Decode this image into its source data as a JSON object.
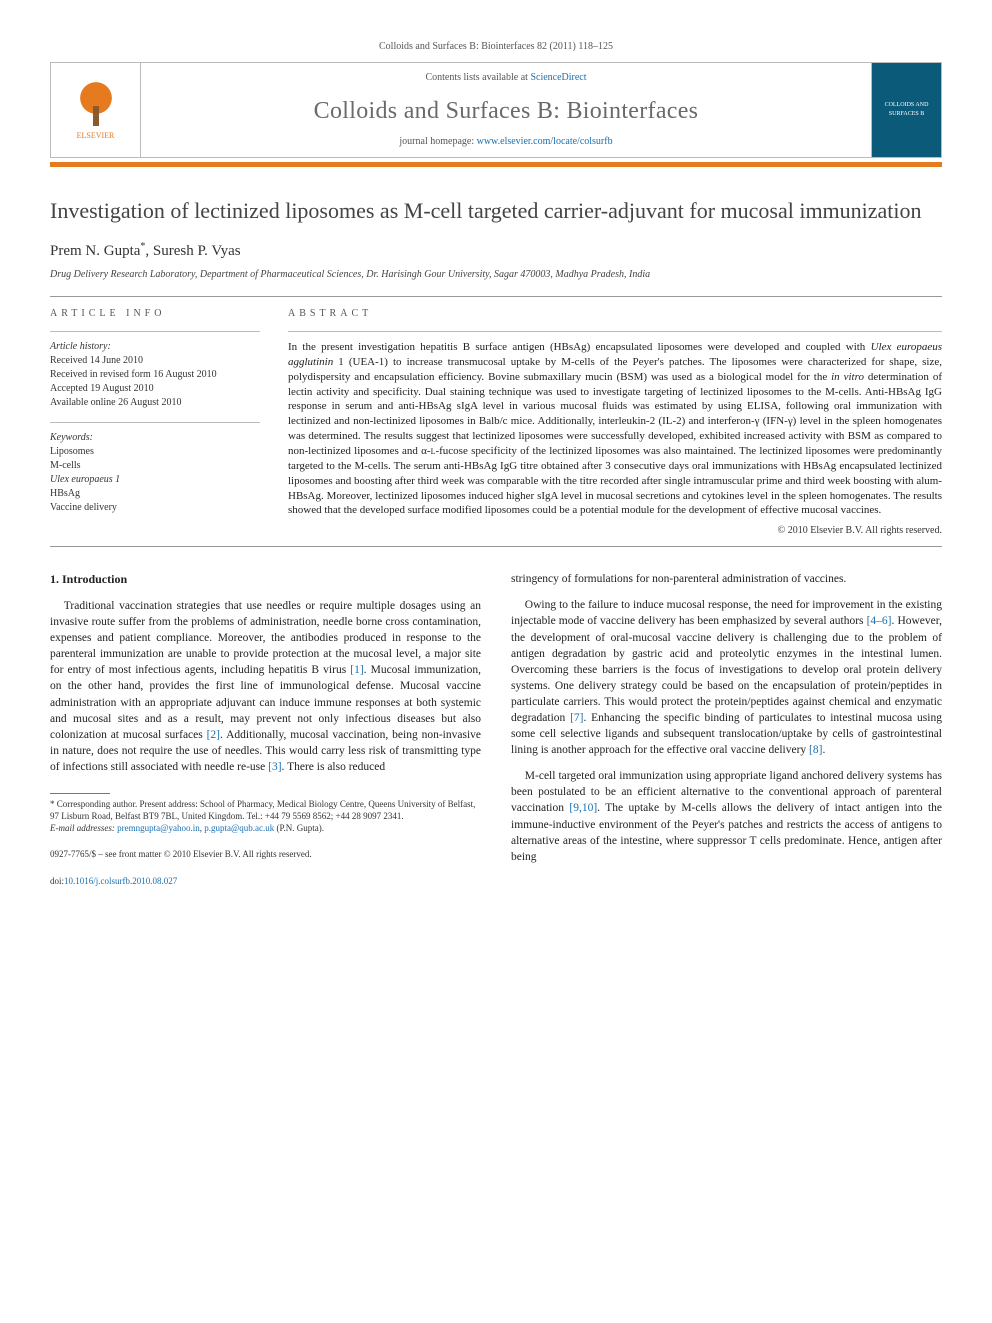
{
  "running_head": "Colloids and Surfaces B: Biointerfaces 82 (2011) 118–125",
  "header": {
    "contents_prefix": "Contents lists available at ",
    "contents_link": "ScienceDirect",
    "journal_title": "Colloids and Surfaces B: Biointerfaces",
    "homepage_prefix": "journal homepage: ",
    "homepage_link": "www.elsevier.com/locate/colsurfb",
    "publisher_label": "ELSEVIER",
    "cover_text": "COLLOIDS AND SURFACES B"
  },
  "article": {
    "title": "Investigation of lectinized liposomes as M-cell targeted carrier-adjuvant for mucosal immunization",
    "authors_html": "Prem N. Gupta*, Suresh P. Vyas",
    "author1": "Prem N. Gupta",
    "author1_mark": "*",
    "author_sep": ", ",
    "author2": "Suresh P. Vyas",
    "affiliation": "Drug Delivery Research Laboratory, Department of Pharmaceutical Sciences, Dr. Harisingh Gour University, Sagar 470003, Madhya Pradesh, India"
  },
  "info": {
    "head": "ARTICLE INFO",
    "history_label": "Article history:",
    "received": "Received 14 June 2010",
    "revised": "Received in revised form 16 August 2010",
    "accepted": "Accepted 19 August 2010",
    "online": "Available online 26 August 2010",
    "keywords_label": "Keywords:",
    "kw1": "Liposomes",
    "kw2": "M-cells",
    "kw3": "Ulex europaeus 1",
    "kw4": "HBsAg",
    "kw5": "Vaccine delivery"
  },
  "abstract": {
    "head": "ABSTRACT",
    "text_parts": {
      "p1a": "In the present investigation hepatitis B surface antigen (HBsAg) encapsulated liposomes were developed and coupled with ",
      "p1_it1": "Ulex europaeus agglutinin",
      "p1b": " 1 (UEA-1) to increase transmucosal uptake by M-cells of the Peyer's patches. The liposomes were characterized for shape, size, polydispersity and encapsulation efficiency. Bovine submaxillary mucin (BSM) was used as a biological model for the ",
      "p1_it2": "in vitro",
      "p1c": " determination of lectin activity and specificity. Dual staining technique was used to investigate targeting of lectinized liposomes to the M-cells. Anti-HBsAg IgG response in serum and anti-HBsAg sIgA level in various mucosal fluids was estimated by using ELISA, following oral immunization with lectinized and non-lectinized liposomes in Balb/c mice. Additionally, interleukin-2 (IL-2) and interferon-γ (IFN-γ) level in the spleen homogenates was determined. The results suggest that lectinized liposomes were successfully developed, exhibited increased activity with BSM as compared to non-lectinized liposomes and α-",
      "p1_sc": "l",
      "p1d": "-fucose specificity of the lectinized liposomes was also maintained. The lectinized liposomes were predominantly targeted to the M-cells. The serum anti-HBsAg IgG titre obtained after 3 consecutive days oral immunizations with HBsAg encapsulated lectinized liposomes and boosting after third week was comparable with the titre recorded after single intramuscular prime and third week boosting with alum-HBsAg. Moreover, lectinized liposomes induced higher sIgA level in mucosal secretions and cytokines level in the spleen homogenates. The results showed that the developed surface modified liposomes could be a potential module for the development of effective mucosal vaccines."
    },
    "copyright": "© 2010 Elsevier B.V. All rights reserved."
  },
  "body": {
    "sec1_head": "1.  Introduction",
    "col1_p1a": "Traditional vaccination strategies that use needles or require multiple dosages using an invasive route suffer from the problems of administration, needle borne cross contamination, expenses and patient compliance. Moreover, the antibodies produced in response to the parenteral immunization are unable to provide protection at the mucosal level, a major site for entry of most infectious agents, including hepatitis B virus ",
    "ref1": "[1]",
    "col1_p1b": ". Mucosal immunization, on the other hand, provides the first line of immunological defense. Mucosal vaccine administration with an appropriate adjuvant can induce immune responses at both systemic and mucosal sites and as a result, may prevent not only infectious diseases but also colonization at mucosal surfaces ",
    "ref2": "[2]",
    "col1_p1c": ". Additionally, mucosal vaccination, being non-invasive in nature, does not require the use of needles. This would carry less risk of transmitting type of infections still associated with needle re-use ",
    "ref3": "[3]",
    "col1_p1d": ". There is also reduced",
    "col2_p1": "stringency of formulations for non-parenteral administration of vaccines.",
    "col2_p2a": "Owing to the failure to induce mucosal response, the need for improvement in the existing injectable mode of vaccine delivery has been emphasized by several authors ",
    "ref46": "[4–6]",
    "col2_p2b": ". However, the development of oral-mucosal vaccine delivery is challenging due to the problem of antigen degradation by gastric acid and proteolytic enzymes in the intestinal lumen. Overcoming these barriers is the focus of investigations to develop oral protein delivery systems. One delivery strategy could be based on the encapsulation of protein/peptides in particulate carriers. This would protect the protein/peptides against chemical and enzymatic degradation ",
    "ref7": "[7]",
    "col2_p2c": ". Enhancing the specific binding of particulates to intestinal mucosa using some cell selective ligands and subsequent translocation/uptake by cells of gastrointestinal lining is another approach for the effective oral vaccine delivery ",
    "ref8": "[8]",
    "col2_p2d": ".",
    "col2_p3a": "M-cell targeted oral immunization using appropriate ligand anchored delivery systems has been postulated to be an efficient alternative to the conventional approach of parenteral vaccination ",
    "ref910": "[9,10]",
    "col2_p3b": ". The uptake by M-cells allows the delivery of intact antigen into the immune-inductive environment of the Peyer's patches and restricts the access of antigens to alternative areas of the intestine, where suppressor T cells predominate. Hence, antigen after being"
  },
  "footnote": {
    "corr_label": "* Corresponding author.",
    "corr_text": " Present address: School of Pharmacy, Medical Biology Centre, Queens University of Belfast, 97 Lisburn Road, Belfast BT9 7BL, United Kingdom. Tel.: +44 79 5569 8562; +44 28 9097 2341.",
    "email_label": "E-mail addresses: ",
    "email1": "premngupta@yahoo.in",
    "email_sep": ", ",
    "email2": "p.gupta@qub.ac.uk",
    "email_owner": " (P.N. Gupta)."
  },
  "footer": {
    "line1": "0927-7765/$ – see front matter © 2010 Elsevier B.V. All rights reserved.",
    "doi_prefix": "doi:",
    "doi": "10.1016/j.colsurfb.2010.08.027"
  },
  "colors": {
    "accent_orange": "#e67a1f",
    "link_blue": "#1a6fb0",
    "rule_gray": "#999999",
    "journal_cover_bg": "#0b5a7a"
  }
}
